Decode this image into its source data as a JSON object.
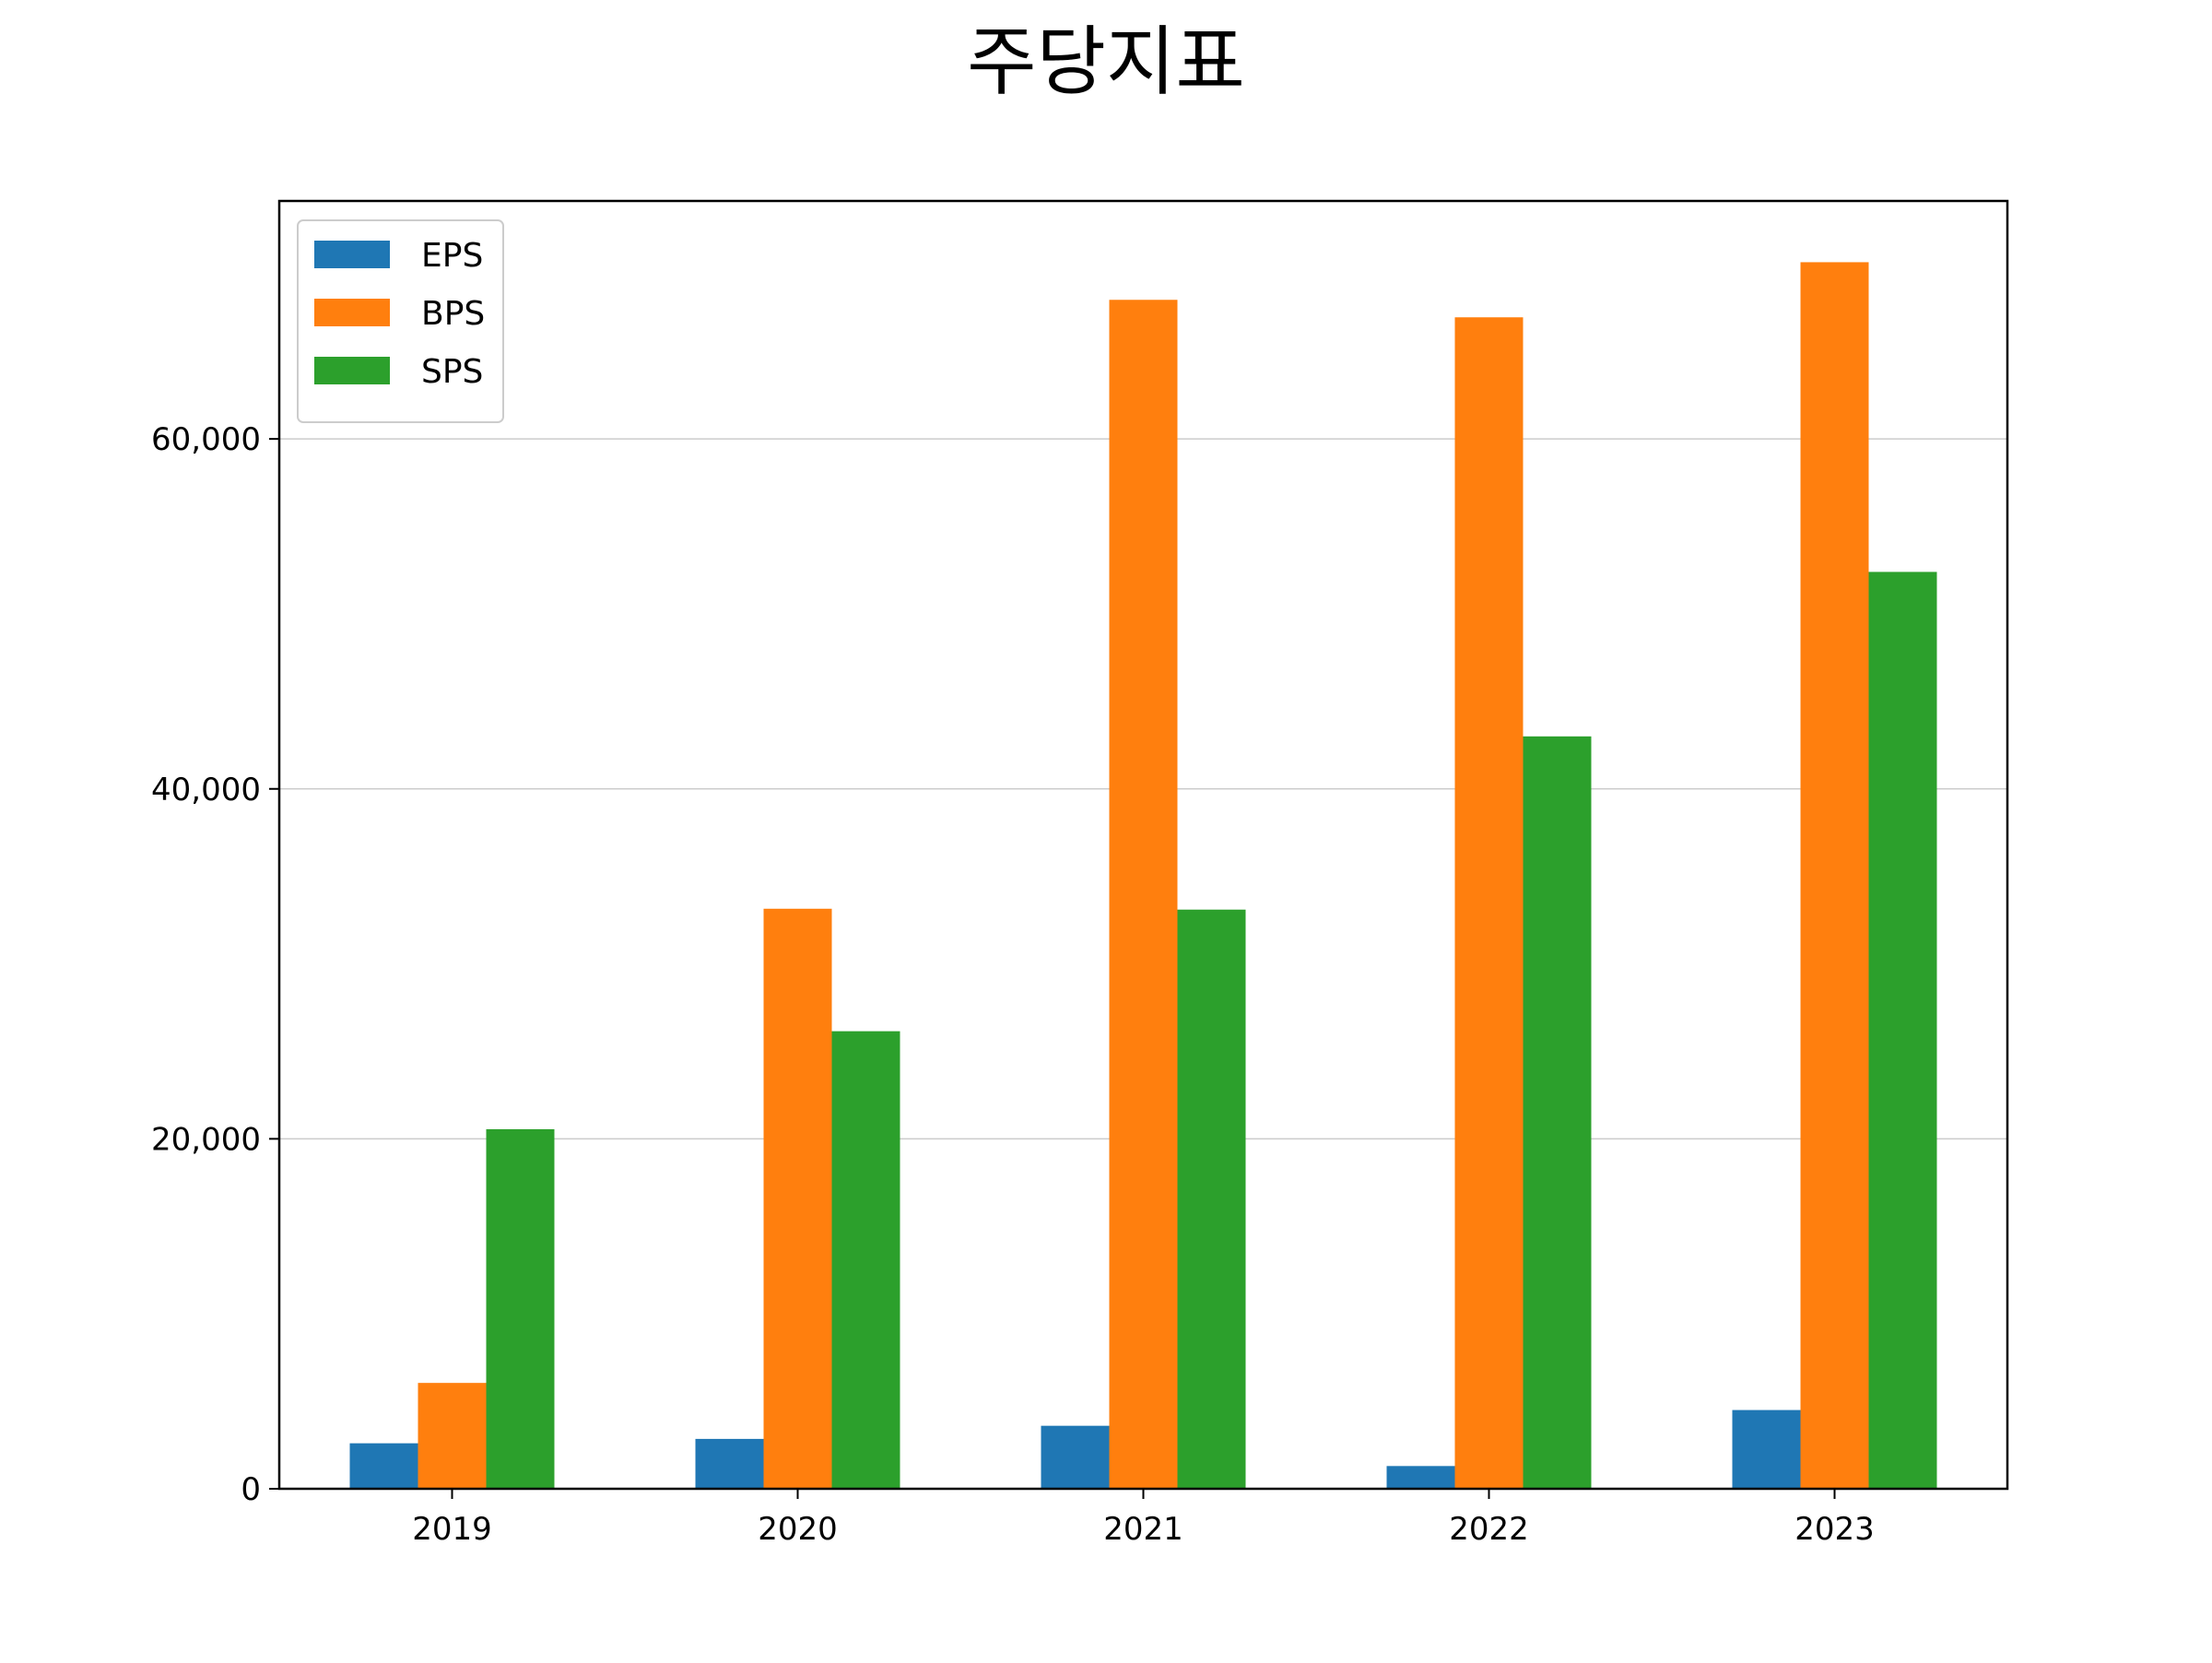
{
  "chart_data": {
    "type": "bar",
    "title": "주당지표",
    "xlabel": "",
    "ylabel": "",
    "categories": [
      "2019",
      "2020",
      "2021",
      "2022",
      "2023"
    ],
    "series": [
      {
        "name": "EPS",
        "color": "#1f77b4",
        "values": [
          2600,
          2850,
          3600,
          1300,
          4500
        ]
      },
      {
        "name": "BPS",
        "color": "#ff7f0e",
        "values": [
          6050,
          33150,
          67950,
          66950,
          70100
        ]
      },
      {
        "name": "SPS",
        "color": "#2ca02c",
        "values": [
          20550,
          26150,
          33100,
          43000,
          52400
        ]
      }
    ],
    "ylim": [
      0,
      73600
    ],
    "yticks": [
      0,
      20000,
      40000,
      60000
    ],
    "ytick_labels": [
      "0",
      "20,000",
      "40,000",
      "60,000"
    ],
    "grid": "y",
    "legend": "upper-left"
  }
}
